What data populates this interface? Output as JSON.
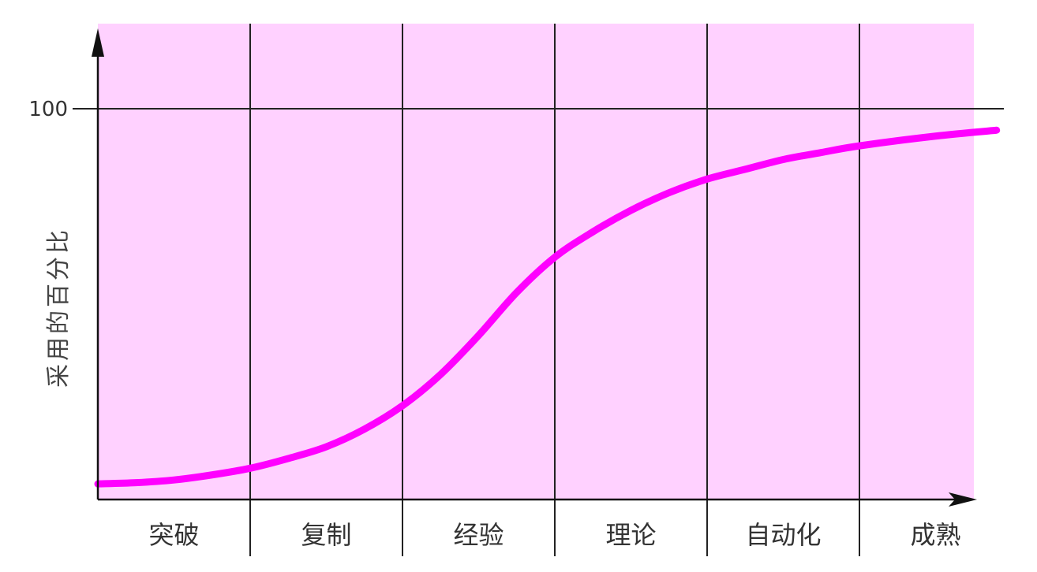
{
  "chart_data": {
    "type": "line",
    "ylabel": "采用的百分比",
    "xlabel": "",
    "title": "",
    "categories": [
      "突破",
      "复制",
      "经验",
      "理论",
      "自动化",
      "成熟"
    ],
    "y_ticks": [
      "100"
    ],
    "ylim": [
      0,
      100
    ],
    "grid": "vertical lines between stages, horizontal line at 100",
    "legend": "none",
    "series": [
      {
        "x": [
          0,
          0.25,
          0.5,
          0.75,
          1.0,
          1.25,
          1.5,
          1.75,
          2.0,
          2.25,
          2.5,
          2.75,
          3.0,
          3.25,
          3.5,
          3.75,
          4.0,
          4.25,
          4.5,
          4.75,
          5.0,
          5.5,
          5.9
        ],
        "values": [
          4,
          4.3,
          5,
          6.3,
          8,
          10.5,
          13.5,
          18,
          24,
          32,
          42,
          53,
          62,
          68.5,
          74,
          78.5,
          82,
          84.5,
          87,
          88.8,
          90.5,
          93,
          94.5
        ]
      }
    ]
  },
  "colors": {
    "background": "#ffd1ff",
    "curve": "#ff00ff",
    "lines": "#222222"
  }
}
